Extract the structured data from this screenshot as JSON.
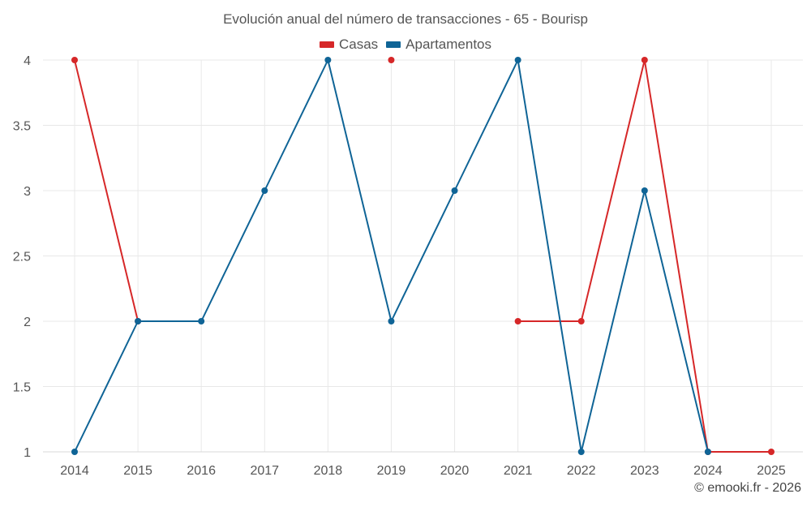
{
  "title": "Evolución anual del número de transacciones - 65 - Bourisp",
  "credit": "© emooki.fr - 2026",
  "chart_data": {
    "type": "line",
    "title": "Evolución anual del número de transacciones - 65 - Bourisp",
    "xlabel": "",
    "ylabel": "",
    "categories": [
      "2014",
      "2015",
      "2016",
      "2017",
      "2018",
      "2019",
      "2020",
      "2021",
      "2022",
      "2023",
      "2024",
      "2025"
    ],
    "ylim": [
      1,
      4
    ],
    "yticks": [
      "1",
      "1.5",
      "2",
      "2.5",
      "3",
      "3.5",
      "4"
    ],
    "grid": true,
    "legend_position": "top-center",
    "series": [
      {
        "name": "Casas",
        "color": "#d62728",
        "values": [
          4,
          2,
          null,
          null,
          null,
          4,
          null,
          2,
          2,
          4,
          1,
          1
        ]
      },
      {
        "name": "Apartamentos",
        "color": "#0f6496",
        "values": [
          1,
          2,
          2,
          3,
          4,
          2,
          3,
          4,
          1,
          3,
          1,
          null
        ]
      }
    ]
  }
}
